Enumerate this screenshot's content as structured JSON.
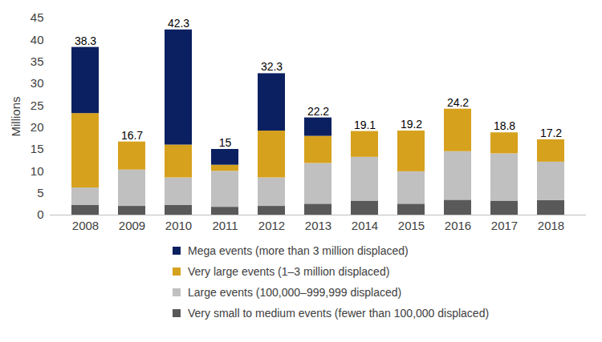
{
  "chart_data": {
    "type": "bar",
    "stacked": true,
    "y_label": "Millions",
    "categories": [
      "2008",
      "2009",
      "2010",
      "2011",
      "2012",
      "2013",
      "2014",
      "2015",
      "2016",
      "2017",
      "2018"
    ],
    "ylim": [
      0,
      45
    ],
    "yticks": [
      0,
      5,
      10,
      15,
      20,
      25,
      30,
      35,
      40,
      45
    ],
    "grid": false,
    "legend": "bottom",
    "series": [
      {
        "name": "Mega events (more than 3 million displaced)",
        "color": "#0b2060",
        "values": [
          15.1,
          0,
          26.3,
          3.6,
          13.1,
          4.2,
          0,
          0,
          0,
          0,
          0
        ]
      },
      {
        "name": "Very large events (1–3 million displaced)",
        "color": "#d6a11d",
        "values": [
          17.0,
          6.4,
          7.5,
          1.4,
          10.7,
          6.2,
          5.9,
          9.3,
          9.7,
          4.8,
          5.1
        ]
      },
      {
        "name": "Large events (100,000–999,999 displaced)",
        "color": "#c0c0c0",
        "values": [
          4.0,
          8.3,
          6.3,
          8.2,
          6.5,
          9.3,
          10.0,
          7.4,
          11.1,
          10.8,
          8.8
        ]
      },
      {
        "name": "Very small to medium events (fewer than 100,000 displaced)",
        "color": "#595959",
        "values": [
          2.2,
          2.0,
          2.2,
          1.8,
          2.0,
          2.5,
          3.2,
          2.5,
          3.4,
          3.2,
          3.3
        ]
      }
    ],
    "totals": [
      38.3,
      16.7,
      42.3,
      15,
      32.3,
      22.2,
      19.1,
      19.2,
      24.2,
      18.8,
      17.2
    ]
  }
}
